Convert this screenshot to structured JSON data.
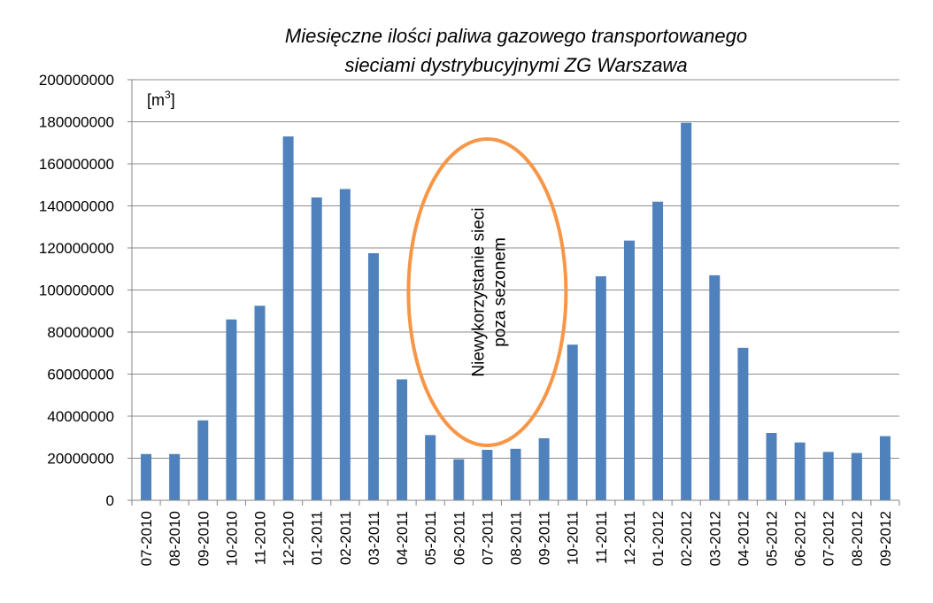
{
  "chart_data": {
    "type": "bar",
    "title_line1": "Miesięczne ilości paliwa gazowego transportowanego",
    "title_line2": "sieciami dystrybucyjnymi ZG Warszawa",
    "unit_base": "[m",
    "unit_sup": "3",
    "unit_close": "]",
    "categories": [
      "07-2010",
      "08-2010",
      "09-2010",
      "10-2010",
      "11-2010",
      "12-2010",
      "01-2011",
      "02-2011",
      "03-2011",
      "04-2011",
      "05-2011",
      "06-2011",
      "07-2011",
      "08-2011",
      "09-2011",
      "10-2011",
      "11-2011",
      "12-2011",
      "01-2012",
      "02-2012",
      "03-2012",
      "04-2012",
      "05-2012",
      "06-2012",
      "07-2012",
      "08-2012",
      "09-2012"
    ],
    "values": [
      22000000,
      22000000,
      38000000,
      86000000,
      92500000,
      173000000,
      144000000,
      148000000,
      117500000,
      57500000,
      31000000,
      19500000,
      24000000,
      24500000,
      29500000,
      74000000,
      106500000,
      123500000,
      142000000,
      179500000,
      107000000,
      72500000,
      32000000,
      27500000,
      23000000,
      22500000,
      30500000
    ],
    "ylim": [
      0,
      200000000
    ],
    "yticks": [
      "0",
      "20000000",
      "40000000",
      "60000000",
      "80000000",
      "100000000",
      "120000000",
      "140000000",
      "160000000",
      "180000000",
      "200000000"
    ],
    "ytick_values": [
      0,
      20000000,
      40000000,
      60000000,
      80000000,
      100000000,
      120000000,
      140000000,
      160000000,
      180000000,
      200000000
    ],
    "grid": true,
    "annotation": {
      "line1": "Niewykorzystanie sieci",
      "line2": "poza sezonem",
      "span": [
        "06-2011",
        "08-2011"
      ]
    },
    "colors": {
      "bar": "#4f81bd",
      "grid": "#8c8c8c",
      "axis": "#868686",
      "ellipse": "#f79646"
    }
  }
}
